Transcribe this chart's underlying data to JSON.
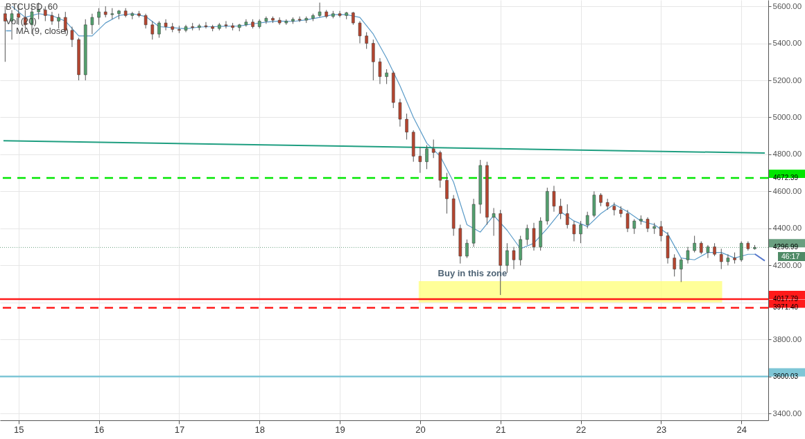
{
  "chart_data": {
    "type": "candlestick",
    "title": "BTCUSD, 60",
    "x": [
      "--11-14T20:00",
      "--11-14T22:00",
      "--11-15T00:00",
      "--11-15T02:00",
      "--11-15T04:00",
      "--11-15T06:00",
      "--11-15T08:00",
      "--11-15T10:00",
      "--11-15T12:00",
      "--11-15T14:00",
      "--11-15T16:00",
      "--11-15T18:00",
      "--11-15T20:00",
      "--11-15T22:00",
      "--11-16T00:00",
      "--11-16T02:00",
      "--11-16T04:00",
      "--11-16T06:00",
      "--11-16T08:00",
      "--11-16T10:00",
      "--11-16T12:00",
      "--11-16T14:00",
      "--11-16T16:00",
      "--11-16T18:00",
      "--11-16T20:00",
      "--11-16T22:00",
      "--11-17T00:00",
      "--11-17T02:00",
      "--11-17T04:00",
      "--11-17T06:00",
      "--11-17T08:00",
      "--11-17T10:00",
      "--11-17T12:00",
      "--11-17T14:00",
      "--11-17T16:00",
      "--11-17T18:00",
      "--11-17T20:00",
      "--11-17T22:00",
      "--11-18T00:00",
      "--11-18T02:00",
      "--11-18T04:00",
      "--11-18T06:00",
      "--11-18T08:00",
      "--11-18T10:00",
      "--11-18T12:00",
      "--11-18T14:00",
      "--11-18T16:00",
      "--11-18T18:00",
      "--11-18T20:00",
      "--11-18T22:00",
      "--11-19T00:00",
      "--11-19T02:00",
      "--11-19T04:00",
      "--11-19T06:00",
      "--11-19T08:00",
      "--11-19T10:00",
      "--11-19T12:00",
      "--11-19T14:00",
      "--11-19T16:00",
      "--11-19T18:00",
      "--11-19T20:00",
      "--11-19T22:00",
      "--11-20T00:00",
      "--11-20T02:00",
      "--11-20T04:00",
      "--11-20T06:00",
      "--11-20T08:00",
      "--11-20T10:00",
      "--11-20T12:00",
      "--11-20T14:00",
      "--11-20T16:00",
      "--11-20T18:00",
      "--11-20T20:00",
      "--11-20T22:00",
      "--11-21T00:00",
      "--11-21T02:00",
      "--11-21T04:00",
      "--11-21T06:00",
      "--11-21T08:00",
      "--11-21T10:00",
      "--11-21T12:00",
      "--11-21T14:00",
      "--11-21T16:00",
      "--11-21T18:00",
      "--11-21T20:00",
      "--11-21T22:00",
      "--11-22T00:00",
      "--11-22T02:00",
      "--11-22T04:00",
      "--11-22T06:00",
      "--11-22T08:00",
      "--11-22T10:00",
      "--11-22T12:00",
      "--11-22T14:00",
      "--11-22T16:00",
      "--11-22T18:00",
      "--11-22T20:00",
      "--11-22T22:00",
      "--11-23T00:00",
      "--11-23T02:00",
      "--11-23T04:00",
      "--11-23T06:00",
      "--11-23T08:00",
      "--11-23T10:00",
      "--11-23T12:00",
      "--11-23T14:00",
      "--11-23T16:00",
      "--11-23T18:00",
      "--11-23T20:00",
      "--11-23T22:00",
      "--11-24T00:00",
      "--11-24T02:00",
      "--11-24T04:00"
    ],
    "ohlc": [
      [
        5560,
        5600,
        5300,
        5520
      ],
      [
        5520,
        5580,
        5420,
        5560
      ],
      [
        5560,
        5610,
        5500,
        5540
      ],
      [
        5540,
        5580,
        5480,
        5500
      ],
      [
        5500,
        5600,
        5450,
        5570
      ],
      [
        5570,
        5620,
        5530,
        5580
      ],
      [
        5580,
        5600,
        5520,
        5550
      ],
      [
        5550,
        5570,
        5500,
        5520
      ],
      [
        5520,
        5560,
        5480,
        5540
      ],
      [
        5540,
        5570,
        5450,
        5470
      ],
      [
        5470,
        5490,
        5380,
        5420
      ],
      [
        5420,
        5430,
        5200,
        5230
      ],
      [
        5230,
        5530,
        5200,
        5500
      ],
      [
        5500,
        5560,
        5450,
        5540
      ],
      [
        5540,
        5590,
        5500,
        5570
      ],
      [
        5570,
        5600,
        5540,
        5555
      ],
      [
        5555,
        5590,
        5530,
        5560
      ],
      [
        5560,
        5580,
        5530,
        5575
      ],
      [
        5575,
        5590,
        5540,
        5550
      ],
      [
        5550,
        5570,
        5530,
        5560
      ],
      [
        5560,
        5575,
        5540,
        5550
      ],
      [
        5550,
        5560,
        5480,
        5500
      ],
      [
        5500,
        5520,
        5420,
        5450
      ],
      [
        5450,
        5520,
        5430,
        5510
      ],
      [
        5510,
        5530,
        5470,
        5490
      ],
      [
        5490,
        5510,
        5460,
        5475
      ],
      [
        5475,
        5495,
        5455,
        5470
      ],
      [
        5470,
        5500,
        5460,
        5490
      ],
      [
        5490,
        5510,
        5470,
        5485
      ],
      [
        5485,
        5505,
        5470,
        5495
      ],
      [
        5495,
        5515,
        5480,
        5490
      ],
      [
        5490,
        5500,
        5465,
        5480
      ],
      [
        5480,
        5510,
        5470,
        5500
      ],
      [
        5500,
        5520,
        5480,
        5495
      ],
      [
        5495,
        5510,
        5470,
        5485
      ],
      [
        5485,
        5505,
        5465,
        5500
      ],
      [
        5500,
        5530,
        5490,
        5515
      ],
      [
        5515,
        5530,
        5480,
        5490
      ],
      [
        5490,
        5530,
        5480,
        5520
      ],
      [
        5520,
        5545,
        5505,
        5535
      ],
      [
        5535,
        5545,
        5510,
        5525
      ],
      [
        5525,
        5540,
        5500,
        5510
      ],
      [
        5510,
        5530,
        5500,
        5520
      ],
      [
        5520,
        5540,
        5505,
        5530
      ],
      [
        5530,
        5545,
        5515,
        5525
      ],
      [
        5525,
        5545,
        5510,
        5535
      ],
      [
        5535,
        5560,
        5520,
        5550
      ],
      [
        5550,
        5620,
        5540,
        5570
      ],
      [
        5570,
        5580,
        5535,
        5545
      ],
      [
        5545,
        5575,
        5535,
        5560
      ],
      [
        5560,
        5575,
        5540,
        5550
      ],
      [
        5550,
        5570,
        5530,
        5565
      ],
      [
        5565,
        5570,
        5500,
        5510
      ],
      [
        5510,
        5520,
        5400,
        5440
      ],
      [
        5440,
        5460,
        5370,
        5400
      ],
      [
        5400,
        5420,
        5200,
        5300
      ],
      [
        5300,
        5320,
        5180,
        5220
      ],
      [
        5220,
        5260,
        5180,
        5240
      ],
      [
        5240,
        5250,
        5050,
        5080
      ],
      [
        5080,
        5100,
        4950,
        4990
      ],
      [
        4990,
        5020,
        4880,
        4920
      ],
      [
        4920,
        4930,
        4760,
        4790
      ],
      [
        4790,
        4840,
        4700,
        4760
      ],
      [
        4760,
        4850,
        4720,
        4830
      ],
      [
        4830,
        4880,
        4780,
        4810
      ],
      [
        4810,
        4820,
        4620,
        4660
      ],
      [
        4660,
        4700,
        4480,
        4560
      ],
      [
        4560,
        4580,
        4360,
        4400
      ],
      [
        4400,
        4420,
        4210,
        4250
      ],
      [
        4250,
        4340,
        4240,
        4320
      ],
      [
        4320,
        4560,
        4300,
        4530
      ],
      [
        4530,
        4770,
        4480,
        4740
      ],
      [
        4740,
        4760,
        4420,
        4460
      ],
      [
        4460,
        4510,
        4360,
        4480
      ],
      [
        4480,
        4500,
        4040,
        4200
      ],
      [
        4200,
        4320,
        4160,
        4280
      ],
      [
        4280,
        4300,
        4180,
        4230
      ],
      [
        4230,
        4360,
        4200,
        4340
      ],
      [
        4340,
        4420,
        4310,
        4400
      ],
      [
        4400,
        4430,
        4280,
        4300
      ],
      [
        4300,
        4460,
        4280,
        4440
      ],
      [
        4440,
        4620,
        4420,
        4600
      ],
      [
        4600,
        4630,
        4490,
        4520
      ],
      [
        4520,
        4560,
        4450,
        4480
      ],
      [
        4480,
        4530,
        4400,
        4420
      ],
      [
        4420,
        4440,
        4330,
        4370
      ],
      [
        4370,
        4440,
        4320,
        4420
      ],
      [
        4420,
        4490,
        4400,
        4470
      ],
      [
        4470,
        4600,
        4460,
        4580
      ],
      [
        4580,
        4590,
        4520,
        4540
      ],
      [
        4540,
        4560,
        4500,
        4520
      ],
      [
        4520,
        4540,
        4470,
        4500
      ],
      [
        4500,
        4520,
        4460,
        4480
      ],
      [
        4480,
        4500,
        4380,
        4400
      ],
      [
        4400,
        4450,
        4370,
        4440
      ],
      [
        4440,
        4470,
        4420,
        4450
      ],
      [
        4450,
        4460,
        4380,
        4400
      ],
      [
        4400,
        4430,
        4370,
        4410
      ],
      [
        4410,
        4440,
        4330,
        4360
      ],
      [
        4360,
        4380,
        4210,
        4240
      ],
      [
        4240,
        4260,
        4140,
        4180
      ],
      [
        4180,
        4240,
        4110,
        4230
      ],
      [
        4230,
        4300,
        4210,
        4280
      ],
      [
        4280,
        4360,
        4270,
        4320
      ],
      [
        4320,
        4330,
        4260,
        4270
      ],
      [
        4270,
        4310,
        4240,
        4300
      ],
      [
        4300,
        4320,
        4250,
        4260
      ],
      [
        4260,
        4290,
        4180,
        4220
      ],
      [
        4220,
        4260,
        4200,
        4240
      ],
      [
        4240,
        4270,
        4210,
        4230
      ],
      [
        4230,
        4330,
        4220,
        4320
      ],
      [
        4320,
        4330,
        4280,
        4290
      ],
      [
        4290,
        4310,
        4285,
        4297
      ]
    ],
    "series": [
      {
        "name": "MA (9, close)",
        "type": "line",
        "color": "#5b9bc8",
        "x": [
          "--11-14T22:00",
          "--11-15T02:00",
          "--11-15T06:00",
          "--11-15T10:00",
          "--11-15T14:00",
          "--11-15T18:00",
          "--11-15T22:00",
          "--11-16T02:00",
          "--11-16T06:00",
          "--11-16T10:00",
          "--11-16T14:00",
          "--11-16T18:00",
          "--11-16T22:00",
          "--11-17T02:00",
          "--11-17T06:00",
          "--11-17T10:00",
          "--11-17T14:00",
          "--11-17T18:00",
          "--11-17T22:00",
          "--11-18T02:00",
          "--11-18T06:00",
          "--11-18T10:00",
          "--11-18T14:00",
          "--11-18T18:00",
          "--11-18T22:00",
          "--11-19T02:00",
          "--11-19T06:00",
          "--11-19T10:00",
          "--11-19T14:00",
          "--11-19T18:00",
          "--11-19T22:00",
          "--11-20T02:00",
          "--11-20T06:00",
          "--11-20T10:00",
          "--11-20T14:00",
          "--11-20T18:00",
          "--11-20T22:00",
          "--11-21T02:00",
          "--11-21T06:00",
          "--11-21T10:00",
          "--11-21T14:00",
          "--11-21T18:00",
          "--11-21T22:00",
          "--11-22T02:00",
          "--11-22T06:00",
          "--11-22T10:00",
          "--11-22T14:00",
          "--11-22T18:00",
          "--11-22T22:00",
          "--11-23T02:00",
          "--11-23T06:00",
          "--11-23T10:00",
          "--11-23T14:00",
          "--11-23T18:00",
          "--11-23T22:00",
          "--11-24T02:00",
          "--11-24T04:00"
        ],
        "values": [
          5600,
          5540,
          5560,
          5550,
          5520,
          5440,
          5440,
          5510,
          5550,
          5560,
          5545,
          5490,
          5485,
          5478,
          5488,
          5490,
          5492,
          5493,
          5505,
          5515,
          5520,
          5518,
          5527,
          5540,
          5555,
          5555,
          5540,
          5450,
          5320,
          5170,
          5000,
          4860,
          4790,
          4650,
          4420,
          4380,
          4470,
          4390,
          4290,
          4320,
          4400,
          4490,
          4440,
          4410,
          4480,
          4530,
          4490,
          4440,
          4420,
          4370,
          4240,
          4230,
          4270,
          4270,
          4240,
          4260,
          4260
        ]
      },
      {
        "type": "line",
        "color": "#1e9e80",
        "x": [
          "--11-14T19:30",
          "--11-24T07:00"
        ],
        "values": [
          4874,
          4807
        ]
      },
      {
        "type": "line",
        "color": "#5577cc",
        "x": [
          "--11-24T04:00",
          "--11-24T07:00"
        ],
        "values": [
          4262,
          4225
        ]
      }
    ],
    "ylim": [
      3363,
      5634
    ],
    "yticks": [
      {
        "value": 3400,
        "label": "3400.00"
      },
      {
        "value": 3600,
        "label": null
      },
      {
        "value": 3800,
        "label": "3800.00"
      },
      {
        "value": 4000,
        "label": null
      },
      {
        "value": 4200,
        "label": "4200.00"
      },
      {
        "value": 4400,
        "label": "4400.00"
      },
      {
        "value": 4600,
        "label": "4600.00"
      },
      {
        "value": 4800,
        "label": "4800.00"
      },
      {
        "value": 5000,
        "label": "5000.00"
      },
      {
        "value": 5200,
        "label": "5200.00"
      },
      {
        "value": 5400,
        "label": "5400.00"
      },
      {
        "value": 5600,
        "label": "5600.00"
      }
    ],
    "xlim": [
      "--11-14T19:30",
      "--11-24T07:00"
    ],
    "xticks": [
      {
        "value": "--11-15T00:00",
        "label": "15"
      },
      {
        "value": "--11-16T00:00",
        "label": "16"
      },
      {
        "value": "--11-17T00:00",
        "label": "17"
      },
      {
        "value": "--11-18T00:00",
        "label": "18"
      },
      {
        "value": "--11-19T00:00",
        "label": "19"
      },
      {
        "value": "--11-20T00:00",
        "label": "20"
      },
      {
        "value": "--11-21T00:00",
        "label": "21"
      },
      {
        "value": "--11-22T00:00",
        "label": "22"
      },
      {
        "value": "--11-23T00:00",
        "label": "23"
      },
      {
        "value": "--11-24T00:00",
        "label": "24"
      }
    ],
    "ref_lines": [
      {
        "axis": "y",
        "value": 4672.39,
        "label": "4672.39",
        "color": "#00e600",
        "line_style": "dashed"
      },
      {
        "axis": "y",
        "value": 4296.99,
        "label": "4296.99",
        "color": "#6a9f80",
        "line_style": "dotted"
      },
      {
        "axis": "y",
        "value": 4017.79,
        "label": "4017.79",
        "color": "#ff1a1a",
        "line_style": "solid"
      },
      {
        "axis": "y",
        "value": 3971.4,
        "label": "3971.40",
        "color": "#ff1a1a",
        "line_style": "dashed"
      },
      {
        "axis": "y",
        "value": 3600.03,
        "label": "3600.03",
        "color": "#7ec6d6",
        "line_style": "solid"
      }
    ],
    "bands": [
      {
        "axis": "y",
        "from": 4000,
        "to": 4115,
        "label": "Buy in this zone",
        "color": "#ffff80"
      }
    ],
    "annotations": [
      "Vol (20)",
      "46:17"
    ],
    "grid": true,
    "legend": "top left"
  }
}
